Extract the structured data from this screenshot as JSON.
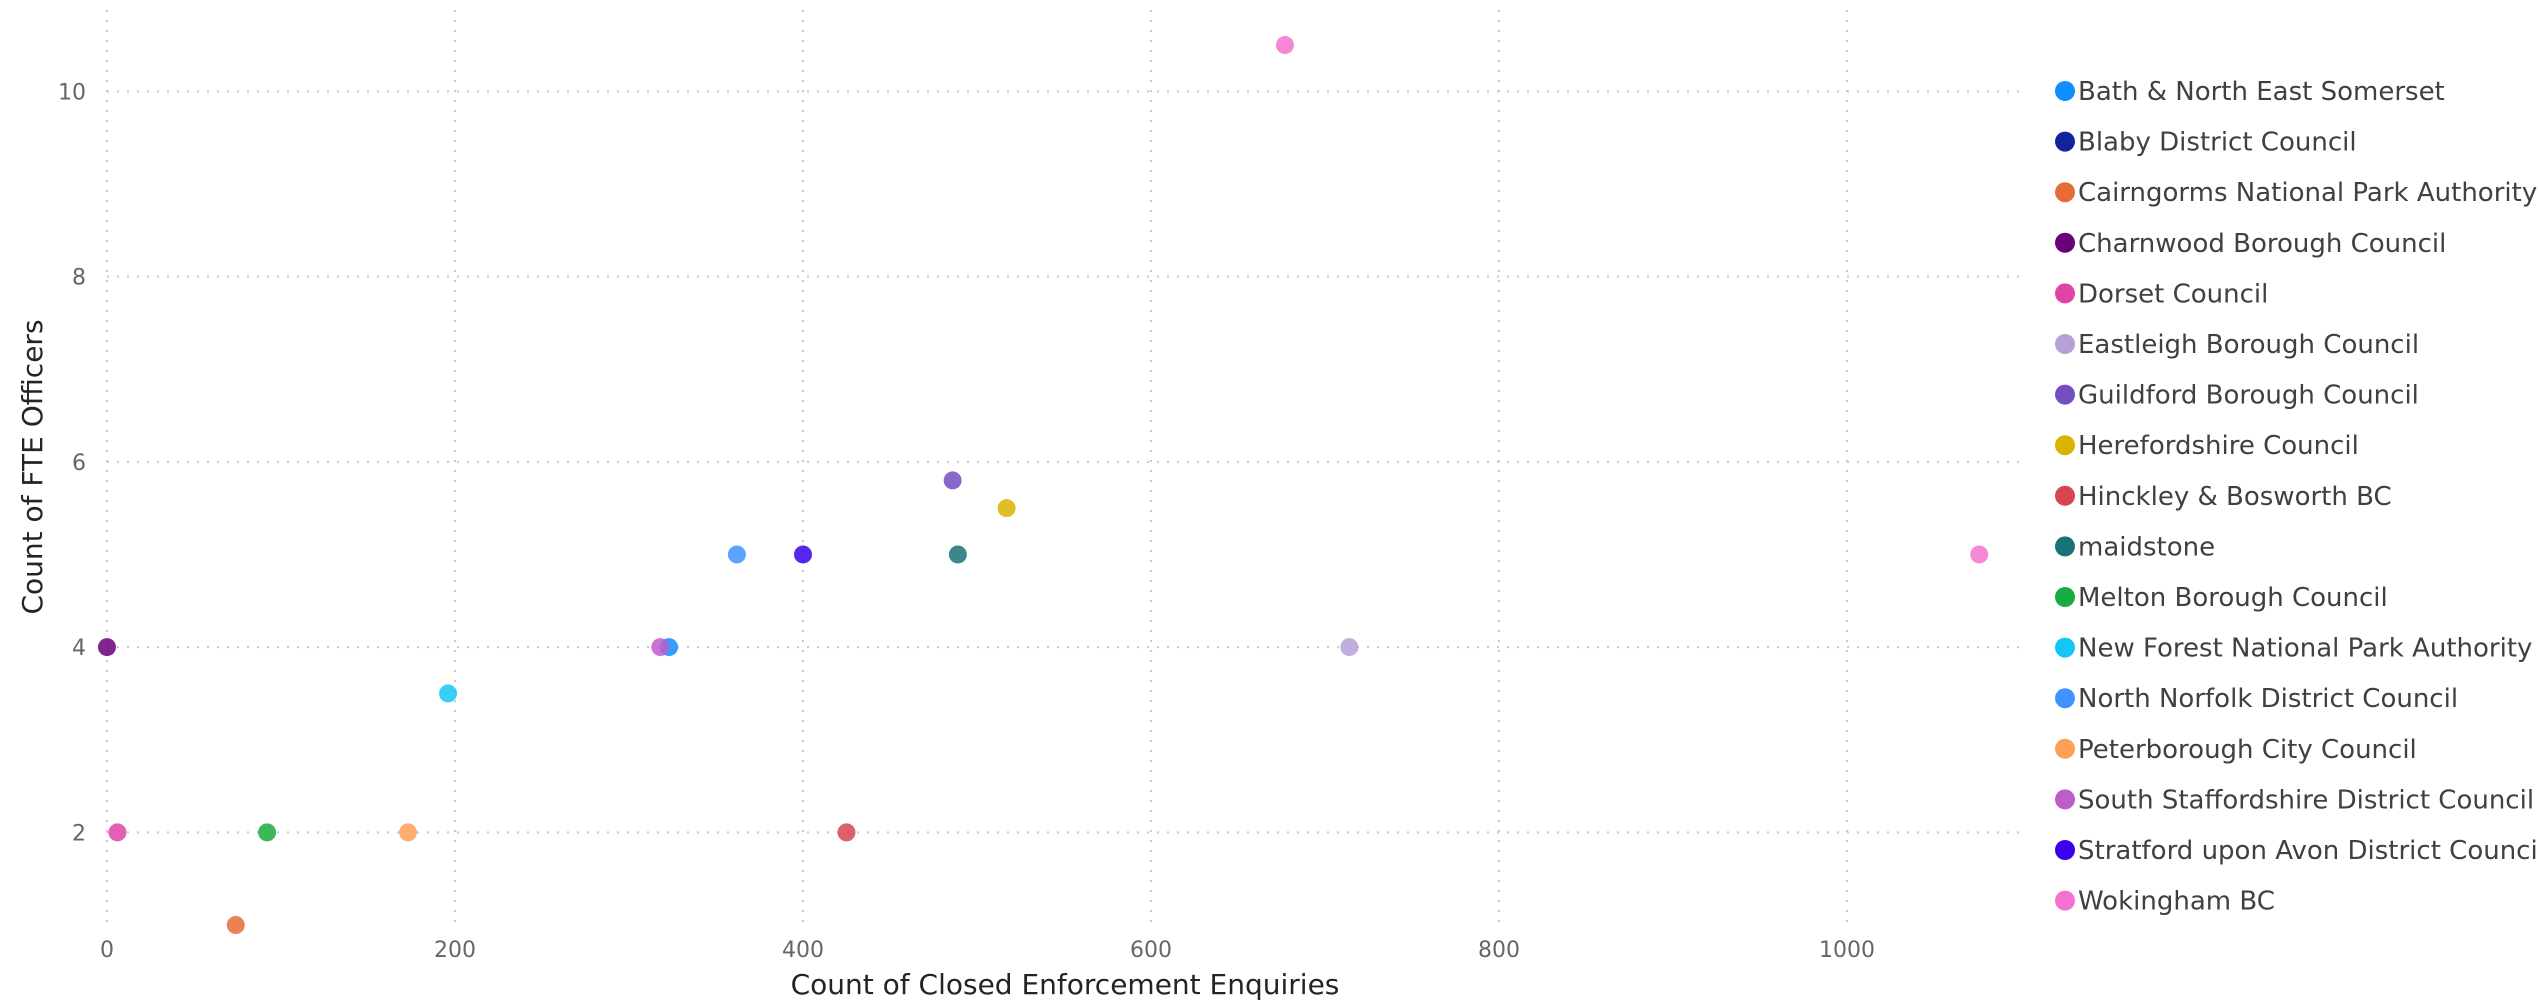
{
  "chart_data": {
    "type": "scatter",
    "xlabel": "Count of Closed Enforcement Enquiries",
    "ylabel": "Count of FTE Officers",
    "xlim": [
      0,
      1100
    ],
    "ylim": [
      1,
      10.9
    ],
    "x_ticks": [
      0,
      200,
      400,
      600,
      800,
      1000
    ],
    "y_ticks": [
      2,
      4,
      6,
      8,
      10
    ],
    "grid": true,
    "legend_position": "right",
    "series": [
      {
        "name": "Bath & North East Somerset",
        "color": "#118DFF",
        "points": [
          [
            323,
            4
          ]
        ]
      },
      {
        "name": "Blaby District Council",
        "color": "#12239E",
        "points": []
      },
      {
        "name": "Cairngorms National Park Authority",
        "color": "#E66C37",
        "points": [
          [
            74,
            1
          ]
        ]
      },
      {
        "name": "Charnwood Borough Council",
        "color": "#6B007B",
        "points": [
          [
            0,
            4
          ]
        ]
      },
      {
        "name": "Dorset Council",
        "color": "#E044A7",
        "points": [
          [
            6,
            2
          ]
        ]
      },
      {
        "name": "Eastleigh Borough Council",
        "color": "#B5A1D6",
        "points": [
          [
            714,
            4
          ]
        ]
      },
      {
        "name": "Guildford Borough Council",
        "color": "#744EC2",
        "points": [
          [
            486,
            5.8
          ]
        ]
      },
      {
        "name": "Herefordshire Council",
        "color": "#D9B300",
        "points": [
          [
            517,
            5.5
          ]
        ]
      },
      {
        "name": "Hinckley & Bosworth BC",
        "color": "#D64550",
        "points": [
          [
            425,
            2
          ]
        ]
      },
      {
        "name": "maidstone",
        "color": "#197278",
        "points": [
          [
            489,
            5
          ]
        ]
      },
      {
        "name": "Melton Borough Council",
        "color": "#1AAB40",
        "points": [
          [
            92,
            2
          ]
        ]
      },
      {
        "name": "New Forest National Park Authority",
        "color": "#15C6F4",
        "points": [
          [
            196,
            3.5
          ]
        ]
      },
      {
        "name": "North Norfolk District Council",
        "color": "#4092FF",
        "points": [
          [
            362,
            5
          ]
        ]
      },
      {
        "name": "Peterborough City Council",
        "color": "#FFA058",
        "points": [
          [
            173,
            2
          ]
        ]
      },
      {
        "name": "South Staffordshire District Council",
        "color": "#BE5DC9",
        "points": [
          [
            318,
            4
          ]
        ]
      },
      {
        "name": "Stratford upon Avon District Council",
        "color": "#3B00EC",
        "points": [
          [
            400,
            5
          ]
        ]
      },
      {
        "name": "Wokingham BC",
        "color": "#F472D0",
        "points": [
          [
            677,
            10.5
          ],
          [
            1076,
            5
          ]
        ]
      }
    ]
  }
}
